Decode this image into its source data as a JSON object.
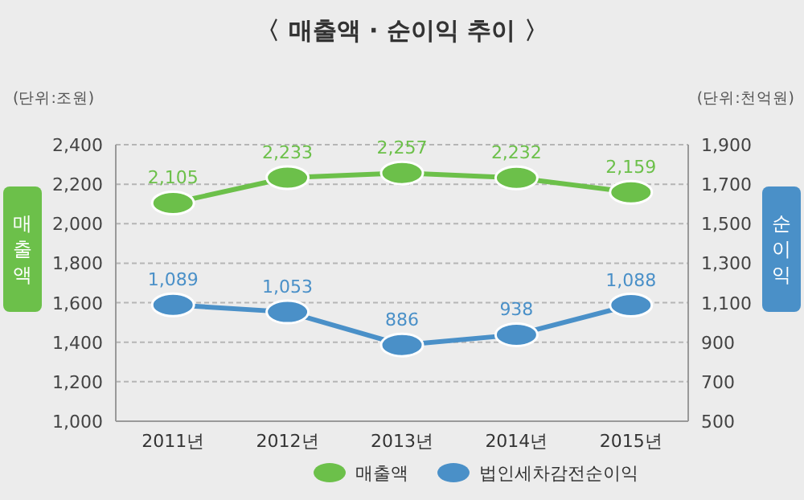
{
  "chart_data": {
    "type": "line",
    "title": "〈 매출액 · 순이익 추이 〉",
    "ylabel": "매출액",
    "y2label": "순이익",
    "annotations": [
      "(단위:조원)",
      "(단위:천억원)"
    ],
    "categories": [
      "2011년",
      "2012년",
      "2013년",
      "2014년",
      "2015년"
    ],
    "series": [
      {
        "name": "매출액",
        "color": "#6cc04a",
        "values": [
          2105,
          2233,
          2257,
          2232,
          2159
        ],
        "value_labels": [
          "2,105",
          "2,233",
          "2,257",
          "2,232",
          "2,159"
        ]
      },
      {
        "name": "법인세차감전순이익",
        "color": "#4a90c8",
        "axis": "y2",
        "values": [
          1089,
          1053,
          886,
          938,
          1088
        ],
        "value_labels": [
          "1,089",
          "1,053",
          "886",
          "938",
          "1,088"
        ]
      }
    ],
    "ylim": [
      1000,
      2400
    ],
    "yticks": [
      {
        "value": 1000,
        "label": "1,000"
      },
      {
        "value": 1200,
        "label": "1,200"
      },
      {
        "value": 1400,
        "label": "1,400"
      },
      {
        "value": 1600,
        "label": "1,600"
      },
      {
        "value": 1800,
        "label": "1,800"
      },
      {
        "value": 2000,
        "label": "2,000"
      },
      {
        "value": 2200,
        "label": "2,200"
      },
      {
        "value": 2400,
        "label": "2,400"
      }
    ],
    "y2lim": [
      500,
      1900
    ],
    "y2ticks": [
      500,
      700,
      900,
      {
        "value": 1100,
        "label": "1,100"
      },
      {
        "value": 1300,
        "label": "1,300"
      },
      {
        "value": 1500,
        "label": "1,500"
      },
      {
        "value": 1700,
        "label": "1,700"
      },
      {
        "value": 1900,
        "label": "1,900"
      }
    ],
    "grid": "y",
    "legend": "bottom",
    "marker": "circle",
    "line_style": "solid"
  }
}
